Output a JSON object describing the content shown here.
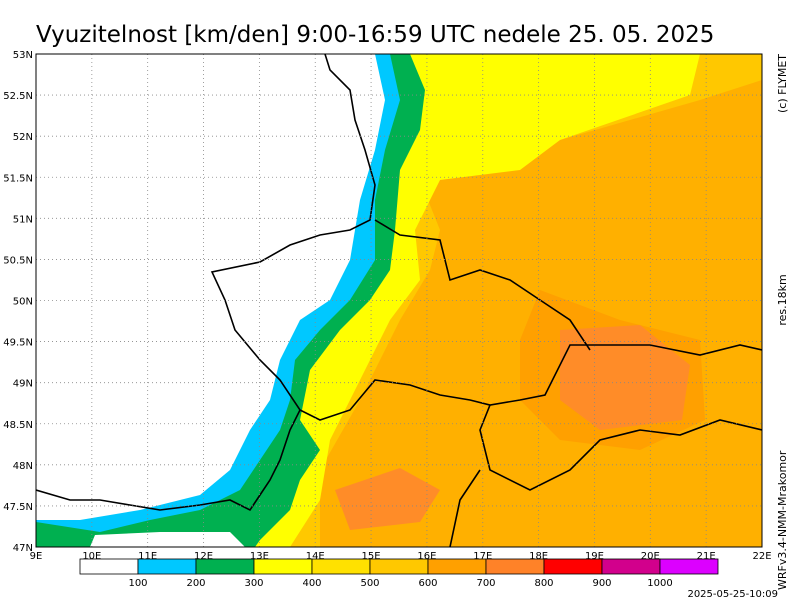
{
  "header": {
    "title": "Vyuzitelnost [km/den] 9:00-16:59 UTC  nedele 25. 05. 2025"
  },
  "side_texts": {
    "copyright": "(c) FLYMET",
    "resolution": "res.18km",
    "model": "WRFv3.4-NMM-Mrakomor"
  },
  "timestamp": "2025-05-25-10:09",
  "map": {
    "lon_labels": [
      "9E",
      "10E",
      "11E",
      "12E",
      "13E",
      "14E",
      "15E",
      "16E",
      "17E",
      "18E",
      "19E",
      "20E",
      "21E",
      "22E"
    ],
    "lat_labels": [
      "53N",
      "52.5N",
      "52N",
      "51.5N",
      "51N",
      "50.5N",
      "50N",
      "49.5N",
      "49N",
      "48.5N",
      "48N",
      "47.5N",
      "47N"
    ]
  },
  "legend": {
    "colors": [
      "#ffffff",
      "#00c8ff",
      "#00b050",
      "#ffff00",
      "#ffe100",
      "#ffc800",
      "#ffa000",
      "#ff8228",
      "#ff0000",
      "#d2008c",
      "#dc00ff"
    ],
    "labels": [
      100,
      200,
      300,
      400,
      500,
      600,
      700,
      800,
      900,
      1000
    ]
  }
}
